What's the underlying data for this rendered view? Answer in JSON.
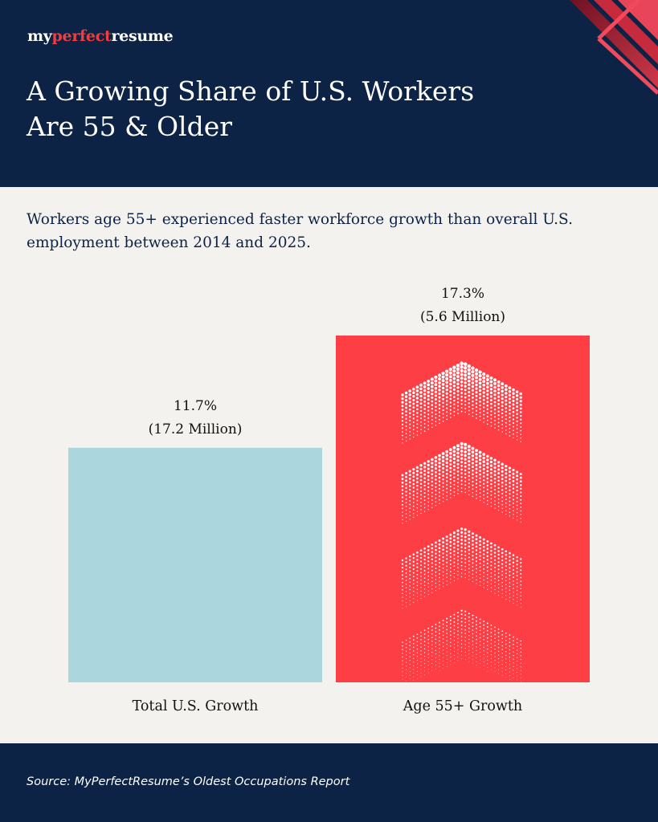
{
  "brand": {
    "logo_part1": "my",
    "logo_part2": "perfect",
    "logo_part3": "resume"
  },
  "header": {
    "title_line1": "A Growing Share of U.S. Workers",
    "title_line2": "Are 55 & Older"
  },
  "subtitle": "Workers age 55+ experienced faster workforce growth than overall U.S. employment between 2014 and 2025.",
  "footer": {
    "source": "Source: MyPerfectResume’s Oldest Occupations Report"
  },
  "colors": {
    "navy": "#0c2346",
    "background": "#f4f2ee",
    "bar_total": "#acd6de",
    "bar_55": "#fd3e44",
    "accent_red": "#ef3e42"
  },
  "chart_data": {
    "type": "bar",
    "title": "",
    "xlabel": "",
    "ylabel": "",
    "categories": [
      "Total U.S. Growth",
      "Age 55+ Growth"
    ],
    "values": [
      11.7,
      17.3
    ],
    "value_unit": "%",
    "data_labels": [
      {
        "percent": "11.7%",
        "count": "(17.2 Million)"
      },
      {
        "percent": "17.3%",
        "count": "(5.6 Million)"
      }
    ],
    "ylim": [
      0,
      17.3
    ],
    "grid": false,
    "legend": "none",
    "bar_colors": [
      "#acd6de",
      "#fd3e44"
    ],
    "decoration": "halftone up-chevrons on Age 55+ bar"
  }
}
